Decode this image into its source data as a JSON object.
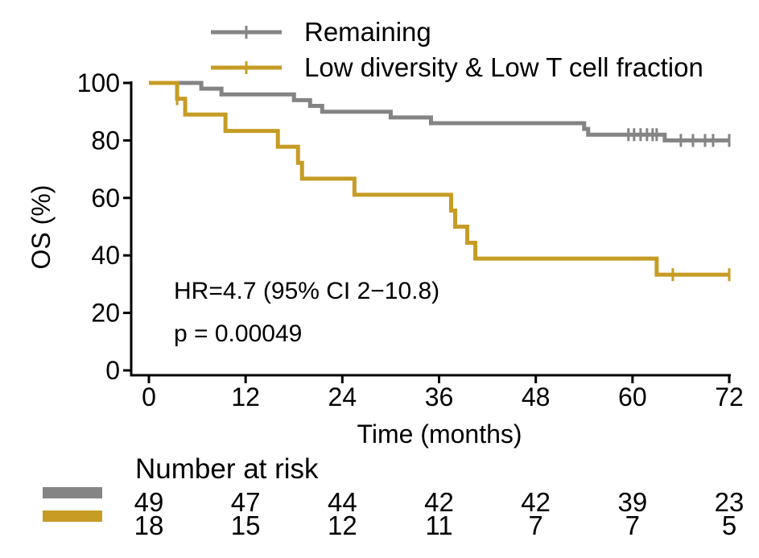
{
  "chart_data": {
    "type": "line",
    "subtype": "kaplan-meier",
    "xlabel": "Time (months)",
    "ylabel": "OS (%)",
    "xlim": [
      0,
      72
    ],
    "ylim": [
      0,
      100
    ],
    "xticks": [
      0,
      12,
      24,
      36,
      48,
      60,
      72
    ],
    "yticks": [
      0,
      20,
      40,
      60,
      80,
      100
    ],
    "legend_position": "top",
    "series": [
      {
        "name": "Remaining",
        "color": "#848484",
        "steps": [
          [
            0,
            100
          ],
          [
            3.5,
            100
          ],
          [
            6.5,
            98
          ],
          [
            9,
            96
          ],
          [
            18,
            94
          ],
          [
            20,
            92
          ],
          [
            21.5,
            90
          ],
          [
            30,
            88
          ],
          [
            35,
            86
          ],
          [
            54,
            84
          ],
          [
            54.5,
            82
          ],
          [
            64,
            80
          ],
          [
            72,
            80
          ]
        ],
        "censors": [
          59.5,
          60.2,
          61,
          61.8,
          62.5,
          63,
          66,
          67.5,
          69,
          70,
          72
        ]
      },
      {
        "name": "Low diversity & Low T cell fraction",
        "color": "#c69c25",
        "steps": [
          [
            0,
            100
          ],
          [
            3.5,
            94.5
          ],
          [
            4.5,
            89
          ],
          [
            9.5,
            83.3
          ],
          [
            16,
            77.8
          ],
          [
            18.5,
            72.2
          ],
          [
            19,
            66.7
          ],
          [
            25.5,
            61.1
          ],
          [
            37.5,
            55.6
          ],
          [
            38,
            50
          ],
          [
            39.5,
            44.4
          ],
          [
            40.5,
            38.9
          ],
          [
            63,
            33.3
          ],
          [
            72,
            33.3
          ]
        ],
        "censors": [
          3.5,
          65,
          72
        ]
      }
    ],
    "annotations": {
      "hr": "HR=4.7 (95% CI 2−10.8)",
      "p": "p = 0.00049"
    },
    "risk_table": {
      "title": "Number at risk",
      "rows": [
        {
          "name": "Remaining",
          "color": "#848484",
          "values": [
            49,
            47,
            44,
            42,
            42,
            39,
            23
          ]
        },
        {
          "name": "Low diversity & Low T cell fraction",
          "color": "#c69c25",
          "values": [
            18,
            15,
            12,
            11,
            7,
            7,
            5
          ]
        }
      ]
    }
  }
}
